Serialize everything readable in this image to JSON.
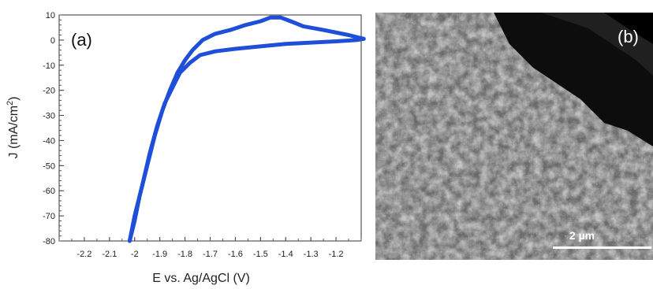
{
  "chart_data": {
    "type": "line",
    "panel_label": "(a)",
    "xlabel": "E vs. Ag/AgCl (V)",
    "ylabel": "J (mA/cm",
    "ylabel_sup": "2",
    "ylabel_close": ")",
    "xlim": [
      -2.3,
      -1.1
    ],
    "ylim": [
      -80,
      10
    ],
    "x_ticks": [
      -2.2,
      -2.1,
      -2.0,
      -1.9,
      -1.8,
      -1.7,
      -1.6,
      -1.5,
      -1.4,
      -1.3,
      -1.2
    ],
    "x_tick_labels": [
      "-2.2",
      "-2.1",
      "-2",
      "-1.9",
      "-1.8",
      "-1.7",
      "-1.6",
      "-1.5",
      "-1.4",
      "-1.3",
      "-1.2"
    ],
    "y_ticks": [
      10,
      0,
      -10,
      -20,
      -30,
      -40,
      -50,
      -60,
      -70,
      -80
    ],
    "y_tick_labels": [
      "10",
      "0",
      "-10",
      "-20",
      "-30",
      "-40",
      "-50",
      "-60",
      "-70",
      "-80"
    ],
    "line_color": "#1f4fd8",
    "series": [
      {
        "x": [
          -1.09,
          -1.15,
          -1.25,
          -1.33,
          -1.38,
          -1.42,
          -1.46,
          -1.5,
          -1.56,
          -1.62,
          -1.68,
          -1.73,
          -1.77,
          -1.8,
          -1.83,
          -1.86,
          -1.89,
          -1.92,
          -1.95,
          -1.98,
          -2.0,
          -2.02
        ],
        "y": [
          0.5,
          2,
          4,
          5.5,
          7.5,
          9,
          9,
          7.5,
          6,
          4,
          2.5,
          0,
          -4,
          -8,
          -13,
          -20,
          -28,
          -38,
          -50,
          -62,
          -72,
          -80
        ]
      },
      {
        "x": [
          -2.02,
          -2.0,
          -1.97,
          -1.94,
          -1.91,
          -1.88,
          -1.85,
          -1.82,
          -1.78,
          -1.74,
          -1.68,
          -1.6,
          -1.5,
          -1.4,
          -1.3,
          -1.2,
          -1.12,
          -1.09
        ],
        "y": [
          -80,
          -70,
          -58,
          -45,
          -34,
          -25,
          -19,
          -13,
          -9,
          -6,
          -4.5,
          -3.5,
          -2.5,
          -1.5,
          -1,
          -0.5,
          0,
          0.5
        ]
      }
    ]
  },
  "sem": {
    "panel_label": "(b)",
    "scale_bar_label": "2 µm"
  }
}
